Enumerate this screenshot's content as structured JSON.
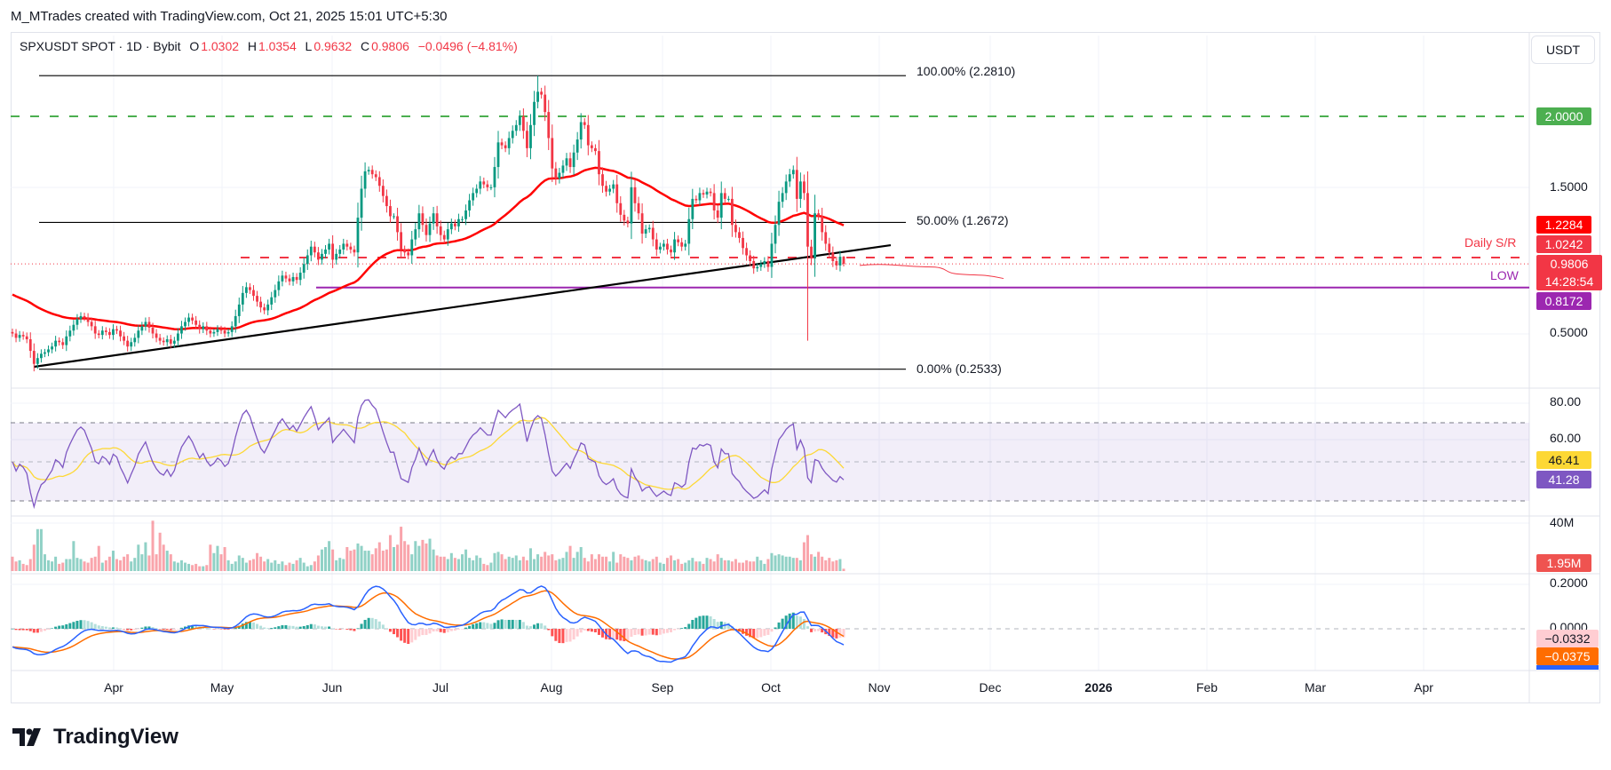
{
  "credit": "M_MTrades created with TradingView.com, Oct 21, 2025 15:01 UTC+5:30",
  "legend": {
    "symbol": "SPXUSDT SPOT · 1D · Bybit",
    "o_label": "O",
    "o": "1.0302",
    "h_label": "H",
    "h": "1.0354",
    "l_label": "L",
    "l": "0.9632",
    "c_label": "C",
    "c": "0.9806",
    "change": "−0.0496 (−4.81%)"
  },
  "currency_button": "USDT",
  "annotations": {
    "fib_100": "100.00% (2.2810)",
    "fib_50": "50.00% (1.2672)",
    "fib_0": "0.00% (0.2533)",
    "daily_sr": "Daily S/R",
    "low": "LOW"
  },
  "price_axis": {
    "ticks": [
      "1.5000",
      "0.5000"
    ],
    "badges": {
      "resistance": {
        "value": "2.0000",
        "color": "#4caf50"
      },
      "ma": {
        "value": "1.2284",
        "color": "#ff0000"
      },
      "daily_sr": {
        "value": "1.0242",
        "color": "#f23645"
      },
      "last": {
        "value": "0.9806",
        "countdown": "14:28:54",
        "color": "#f23645"
      },
      "low": {
        "value": "0.8172",
        "color": "#9c27b0"
      }
    }
  },
  "rsi_axis": {
    "ticks": [
      "80.00",
      "60.00"
    ],
    "rsi_ma": {
      "value": "46.41",
      "color": "#fdd835"
    },
    "rsi": {
      "value": "41.28",
      "color": "#7e57c2"
    }
  },
  "volume_axis": {
    "ticks": [
      "40M"
    ],
    "last": {
      "value": "1.95M",
      "color": "#ef5350"
    }
  },
  "macd_axis": {
    "ticks": [
      "0.2000",
      "0.0000"
    ],
    "hist": {
      "value": "−0.0332",
      "color": "#ffcdd2"
    },
    "signal": {
      "value": "−0.0375",
      "color": "#ff6d00"
    },
    "macd": {
      "color": "#2962ff"
    }
  },
  "time_axis": [
    "Apr",
    "May",
    "Jun",
    "Jul",
    "Aug",
    "Sep",
    "Oct",
    "Nov",
    "Dec",
    "2026",
    "Feb",
    "Mar",
    "Apr"
  ],
  "brand": "TradingView",
  "chart_data": {
    "type": "candlestick",
    "interval": "1D",
    "price_scale": "linear",
    "levels": {
      "fib_100": 2.281,
      "fib_50": 1.2672,
      "fib_0": 0.2533,
      "resistance": 2.0,
      "daily_sr": 1.0242,
      "low": 0.8172,
      "last": 0.9806,
      "ma": 1.2284
    },
    "trendline": {
      "from": 0.27,
      "to": 1.11
    },
    "colors": {
      "up": "#089981",
      "down": "#f23645",
      "ma": "#ff0000",
      "trendline": "#000000"
    },
    "close": [
      0.5,
      0.47,
      0.49,
      0.48,
      0.46,
      0.38,
      0.29,
      0.33,
      0.36,
      0.37,
      0.39,
      0.41,
      0.45,
      0.44,
      0.42,
      0.48,
      0.52,
      0.56,
      0.6,
      0.62,
      0.61,
      0.58,
      0.55,
      0.5,
      0.49,
      0.52,
      0.51,
      0.49,
      0.53,
      0.52,
      0.48,
      0.45,
      0.41,
      0.44,
      0.47,
      0.52,
      0.55,
      0.58,
      0.54,
      0.5,
      0.47,
      0.45,
      0.44,
      0.46,
      0.43,
      0.45,
      0.5,
      0.55,
      0.58,
      0.61,
      0.59,
      0.56,
      0.53,
      0.55,
      0.52,
      0.5,
      0.51,
      0.53,
      0.52,
      0.5,
      0.51,
      0.55,
      0.62,
      0.7,
      0.78,
      0.82,
      0.8,
      0.76,
      0.72,
      0.68,
      0.66,
      0.7,
      0.75,
      0.8,
      0.86,
      0.9,
      0.88,
      0.86,
      0.89,
      0.87,
      0.92,
      0.98,
      1.04,
      1.1,
      1.06,
      1.01,
      1.05,
      1.08,
      1.12,
      1.01,
      1.05,
      1.08,
      1.12,
      1.1,
      1.08,
      1.06,
      1.3,
      1.5,
      1.62,
      1.63,
      1.6,
      1.58,
      1.52,
      1.45,
      1.38,
      1.31,
      1.31,
      1.2,
      1.08,
      1.06,
      1.04,
      1.15,
      1.22,
      1.33,
      1.25,
      1.18,
      1.26,
      1.33,
      1.24,
      1.18,
      1.15,
      1.22,
      1.26,
      1.24,
      1.29,
      1.29,
      1.35,
      1.42,
      1.47,
      1.5,
      1.55,
      1.53,
      1.51,
      1.51,
      1.65,
      1.82,
      1.8,
      1.78,
      1.85,
      1.9,
      1.94,
      2.0,
      1.9,
      1.78,
      1.94,
      2.1,
      2.17,
      2.15,
      2.03,
      1.85,
      1.64,
      1.57,
      1.61,
      1.66,
      1.71,
      1.65,
      1.75,
      1.84,
      1.96,
      1.94,
      1.8,
      1.78,
      1.76,
      1.6,
      1.52,
      1.48,
      1.5,
      1.53,
      1.4,
      1.32,
      1.28,
      1.26,
      1.51,
      1.4,
      1.33,
      1.19,
      1.22,
      1.23,
      1.15,
      1.08,
      1.1,
      1.12,
      1.08,
      1.06,
      1.15,
      1.13,
      1.1,
      1.12,
      1.29,
      1.43,
      1.42,
      1.47,
      1.46,
      1.48,
      1.47,
      1.35,
      1.3,
      1.47,
      1.43,
      1.43,
      1.25,
      1.2,
      1.16,
      1.09,
      1.04,
      1.0,
      0.95,
      0.96,
      0.98,
      1.0,
      0.96,
      1.12,
      1.25,
      1.41,
      1.47,
      1.55,
      1.6,
      1.63,
      1.43,
      1.55,
      1.47,
      1.1,
      1.02,
      1.33,
      1.31,
      1.2,
      1.12,
      1.06,
      1.0,
      0.97,
      1.0302,
      0.9806
    ],
    "extreme_wicks": [
      {
        "bar": "Jul peak",
        "high": 2.281
      },
      {
        "bar": "Oct 10",
        "low": 0.45
      }
    ],
    "last_bar": {
      "open": 1.0302,
      "high": 1.0354,
      "low": 0.9632,
      "close": 0.9806
    },
    "volume_millions": [
      12,
      8,
      9,
      6,
      5,
      10,
      22,
      35,
      35,
      14,
      9,
      8,
      12,
      6,
      7,
      10,
      10,
      25,
      11,
      10,
      8,
      7,
      11,
      12,
      21,
      7,
      9,
      12,
      17,
      10,
      9,
      12,
      14,
      8,
      11,
      22,
      14,
      24,
      13,
      42,
      14,
      32,
      22,
      17,
      14,
      8,
      7,
      9,
      7,
      6,
      5,
      6,
      4,
      4,
      5,
      22,
      15,
      21,
      14,
      20,
      9,
      6,
      8,
      13,
      11,
      7,
      9,
      10,
      15,
      12,
      8,
      10,
      7,
      9,
      6,
      8,
      5,
      7,
      6,
      9,
      11,
      7,
      4,
      5,
      8,
      13,
      18,
      20,
      25,
      18,
      9,
      11,
      10,
      20,
      17,
      18,
      23,
      21,
      17,
      17,
      14,
      19,
      24,
      17,
      18,
      30,
      20,
      22,
      37,
      25,
      22,
      14,
      25,
      21,
      26,
      23,
      27,
      18,
      13,
      12,
      12,
      10,
      15,
      11,
      10,
      14,
      18,
      11,
      9,
      13,
      11,
      6,
      5,
      7,
      15,
      16,
      14,
      10,
      12,
      11,
      13,
      9,
      12,
      9,
      19,
      10,
      14,
      12,
      16,
      13,
      14,
      9,
      10,
      11,
      16,
      21,
      11,
      16,
      20,
      11,
      8,
      14,
      10,
      14,
      12,
      12,
      8,
      16,
      7,
      14,
      12,
      11,
      9,
      12,
      13,
      10,
      9,
      8,
      10,
      12,
      7,
      6,
      11,
      13,
      9,
      10,
      6,
      7,
      9,
      11,
      8,
      8,
      6,
      11,
      10,
      8,
      14,
      11,
      9,
      9,
      8,
      10,
      7,
      7,
      9,
      8,
      8,
      12,
      9,
      6,
      10,
      15,
      13,
      14,
      13,
      12,
      12,
      11,
      11,
      9,
      24,
      30,
      14,
      12,
      16,
      12,
      9,
      11,
      8,
      9,
      10,
      1.95
    ],
    "indicators": {
      "ma": "red moving average",
      "rsi": {
        "levels": [
          70,
          50,
          30
        ],
        "ylim": [
          20,
          90
        ]
      },
      "volume": true,
      "macd": {
        "ylim": [
          -0.18,
          0.22
        ]
      }
    }
  }
}
